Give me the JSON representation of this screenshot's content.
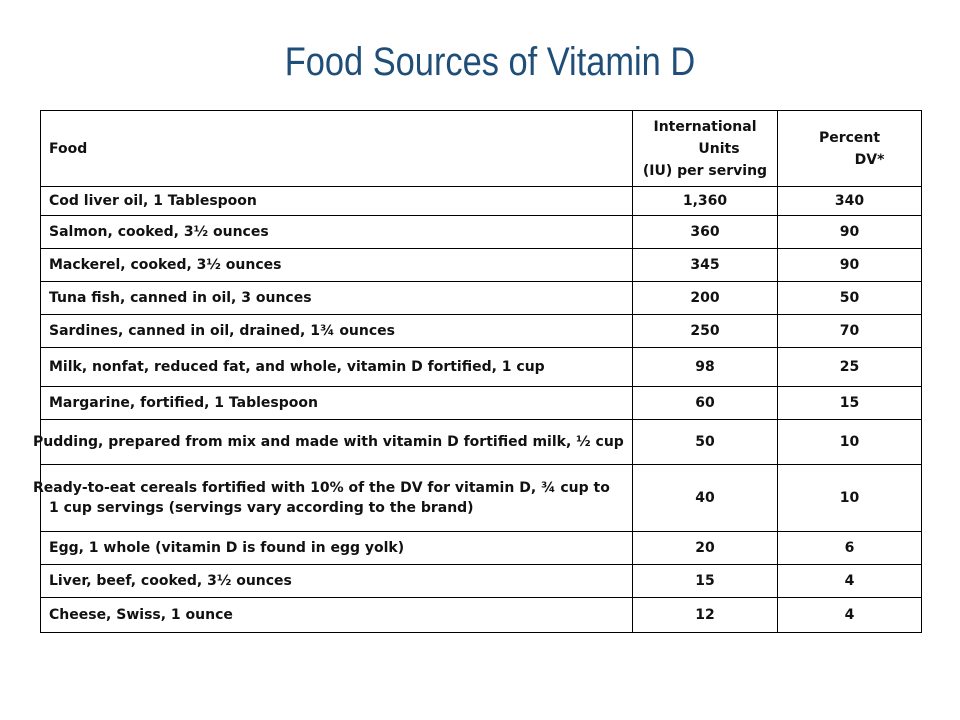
{
  "title": "Food Sources of Vitamin D",
  "table": {
    "headers": {
      "food": "Food",
      "iu_line1": "International",
      "iu_line2": "Units",
      "iu_line3": "(IU) per serving",
      "pct_line1": "Percent",
      "pct_line2": "DV*"
    },
    "rows": [
      {
        "food": "Cod liver oil, 1 Tablespoon",
        "iu": "1,360",
        "dv": "340"
      },
      {
        "food": "Salmon, cooked, 3½ ounces",
        "iu": "360",
        "dv": "90"
      },
      {
        "food": "Mackerel, cooked, 3½ ounces",
        "iu": "345",
        "dv": "90"
      },
      {
        "food": "Tuna fish, canned in oil, 3 ounces",
        "iu": "200",
        "dv": "50"
      },
      {
        "food": "Sardines, canned in oil, drained, 1¾ ounces",
        "iu": "250",
        "dv": "70"
      },
      {
        "food": "Milk, nonfat, reduced fat, and whole, vitamin D fortified, 1 cup",
        "iu": "98",
        "dv": "25"
      },
      {
        "food": "Margarine, fortified, 1 Tablespoon",
        "iu": "60",
        "dv": "15"
      },
      {
        "food": "Pudding, prepared from mix and made with vitamin D fortified milk, ½ cup",
        "iu": "50",
        "dv": "10"
      },
      {
        "food": "Ready-to-eat cereals fortified with 10% of the DV for vitamin D, ¾ cup to 1 cup servings (servings vary according to the brand)",
        "iu": "40",
        "dv": "10"
      },
      {
        "food": "Egg, 1 whole (vitamin D is found in egg yolk)",
        "iu": "20",
        "dv": "6"
      },
      {
        "food": "Liver, beef, cooked, 3½ ounces",
        "iu": "15",
        "dv": "4"
      },
      {
        "food": "Cheese, Swiss, 1 ounce",
        "iu": "12",
        "dv": "4"
      }
    ]
  }
}
